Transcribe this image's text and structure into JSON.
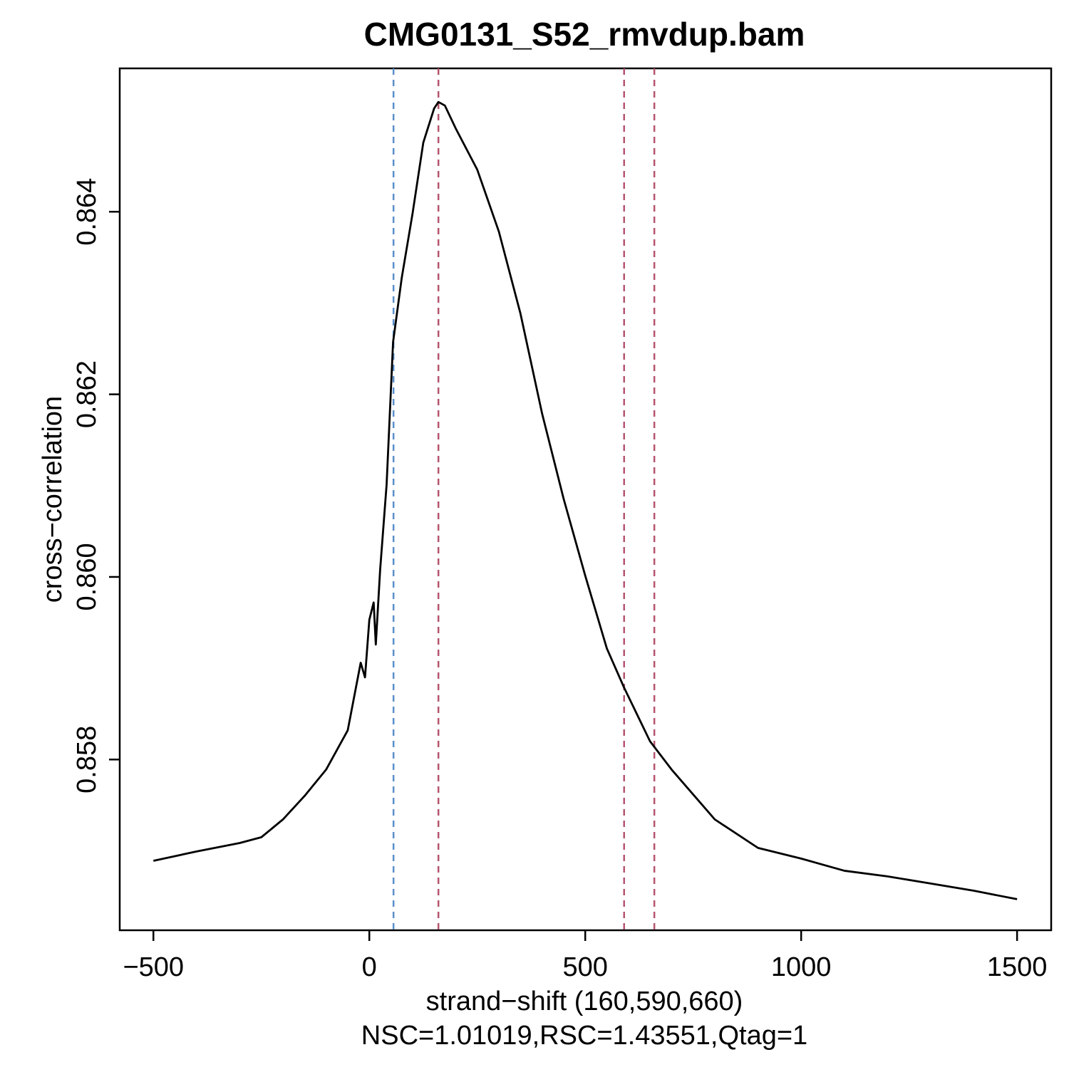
{
  "chart_data": {
    "type": "line",
    "title": "CMG0131_S52_rmvdup.bam",
    "x_label": "strand−shift (160,590,660)",
    "x_label_2": "NSC=1.01019,RSC=1.43551,Qtag=1",
    "y_label": "cross−correlation",
    "x": [
      -500,
      -400,
      -300,
      -250,
      -200,
      -150,
      -100,
      -50,
      -20,
      -10,
      0,
      10,
      15,
      25,
      40,
      55,
      75,
      100,
      125,
      150,
      160,
      175,
      200,
      250,
      300,
      350,
      400,
      450,
      500,
      550,
      590,
      650,
      700,
      800,
      900,
      1000,
      1100,
      1200,
      1300,
      1400,
      1500
    ],
    "values": [
      0.856891,
      0.856993,
      0.857086,
      0.857149,
      0.857344,
      0.857601,
      0.85789,
      0.85832,
      0.85906,
      0.8589,
      0.85953,
      0.85972,
      0.85926,
      0.860075,
      0.86101,
      0.862572,
      0.863274,
      0.863977,
      0.864757,
      0.865131,
      0.865202,
      0.865163,
      0.864913,
      0.86446,
      0.863782,
      0.862884,
      0.861791,
      0.860855,
      0.860013,
      0.859217,
      0.858787,
      0.8582,
      0.85789,
      0.857344,
      0.857032,
      0.856915,
      0.856782,
      0.85672,
      0.856642,
      0.856563,
      0.85647
    ],
    "color": "#000000",
    "vlines": [
      {
        "x": 56,
        "color": "#5b8fc9"
      },
      {
        "x": 160,
        "color": "#b5546e"
      },
      {
        "x": 590,
        "color": "#b5546e"
      },
      {
        "x": 660,
        "color": "#b5546e"
      }
    ],
    "xlim": [
      -578,
      1579
    ],
    "ylim": [
      0.85613,
      0.86557
    ],
    "xticks": [
      {
        "value": -500,
        "label": "−500"
      },
      0,
      500,
      1000,
      1500
    ],
    "yticks": [
      0.858,
      {
        "value": 0.86,
        "label": "0.860"
      },
      0.862,
      0.864
    ],
    "grid": false
  }
}
